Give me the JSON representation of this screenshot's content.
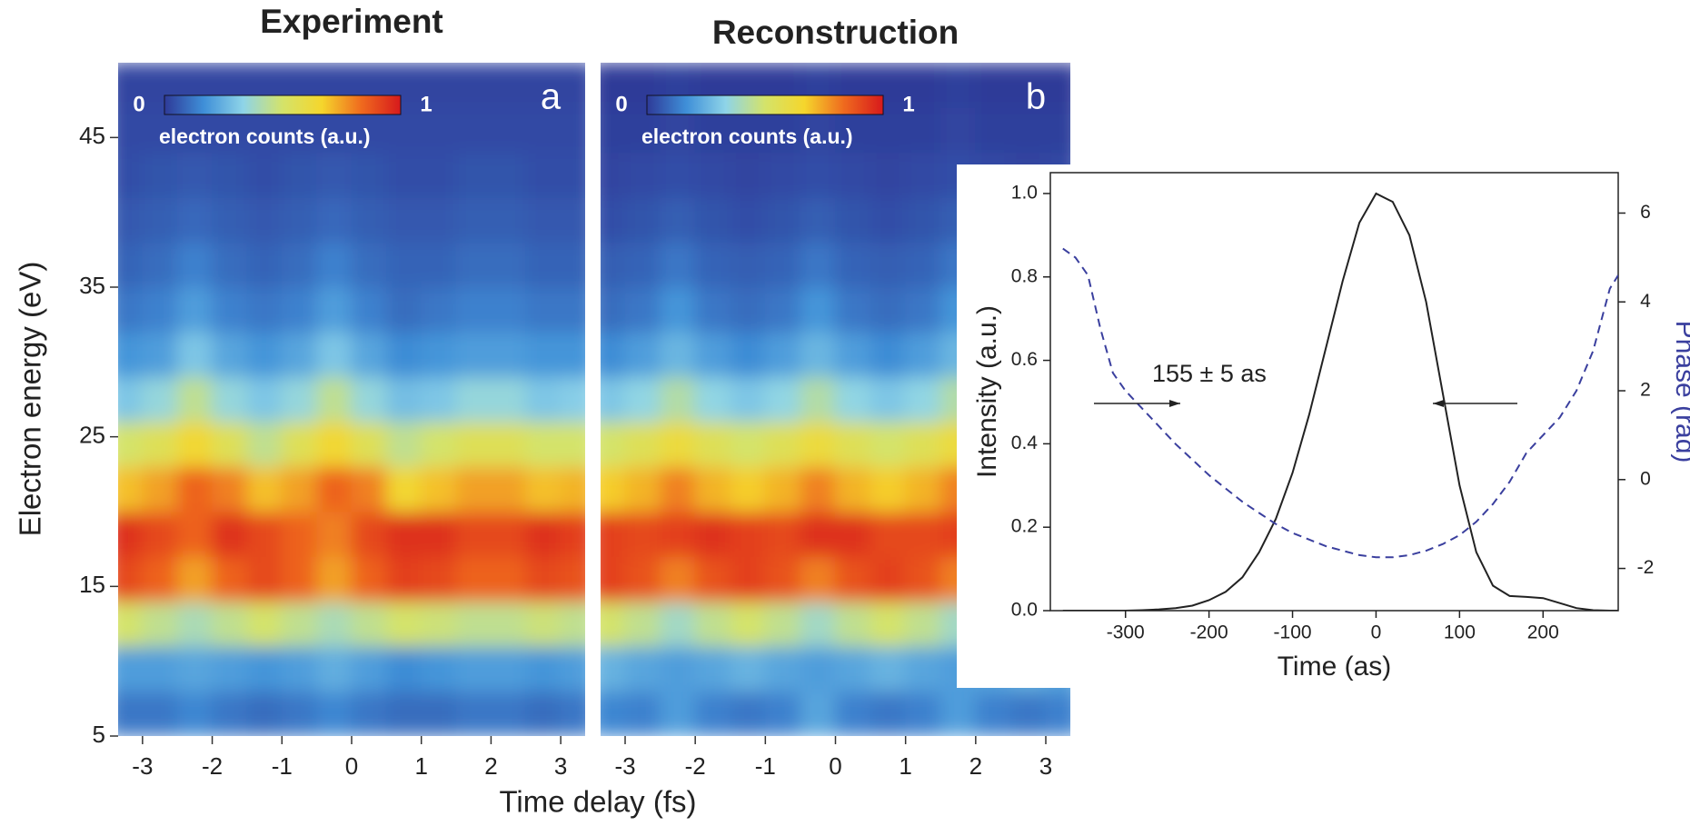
{
  "chart_data": [
    {
      "type": "heatmap",
      "title": "Experiment",
      "panel_label": "a",
      "y_label": "Electron energy (eV)",
      "x_label": "Time delay (fs)",
      "colorbar_ticks": [
        0,
        1
      ],
      "colorbar_label": "electron counts (a.u.)",
      "colormap": [
        "#2e3a98",
        "#3f8fd8",
        "#8ed4e8",
        "#d4e36a",
        "#f5d62c",
        "#ef6a1e",
        "#d7191c"
      ],
      "xlim": [
        -3.35,
        3.35
      ],
      "ylim": [
        5,
        50
      ],
      "xticks": [
        -3,
        -2,
        -1,
        0,
        1,
        2,
        3
      ],
      "yticks": [
        5,
        15,
        25,
        35,
        45
      ],
      "x": [
        -3.25,
        -2.75,
        -2.25,
        -1.75,
        -1.25,
        -0.75,
        -0.25,
        0.25,
        0.75,
        1.25,
        1.75,
        2.25,
        2.75,
        3.25
      ],
      "y": [
        6.5,
        9.5,
        12.5,
        15.5,
        18.5,
        21.5,
        24.5,
        27.5,
        30.5,
        33.5,
        36.5,
        39.5,
        42.5,
        45.5,
        48.5
      ],
      "z": [
        [
          0.12,
          0.12,
          0.15,
          0.12,
          0.1,
          0.12,
          0.15,
          0.12,
          0.1,
          0.1,
          0.12,
          0.12,
          0.1,
          0.12
        ],
        [
          0.2,
          0.2,
          0.22,
          0.2,
          0.18,
          0.2,
          0.24,
          0.2,
          0.16,
          0.18,
          0.2,
          0.2,
          0.18,
          0.2
        ],
        [
          0.5,
          0.45,
          0.4,
          0.45,
          0.5,
          0.45,
          0.4,
          0.45,
          0.5,
          0.48,
          0.45,
          0.45,
          0.48,
          0.45
        ],
        [
          0.9,
          0.85,
          0.75,
          0.85,
          0.9,
          0.85,
          0.75,
          0.85,
          0.92,
          0.9,
          0.85,
          0.85,
          0.9,
          0.88
        ],
        [
          0.95,
          0.9,
          0.85,
          0.95,
          0.9,
          0.85,
          0.8,
          0.9,
          0.95,
          0.95,
          0.9,
          0.9,
          0.95,
          0.92
        ],
        [
          0.7,
          0.75,
          0.85,
          0.8,
          0.7,
          0.75,
          0.85,
          0.8,
          0.65,
          0.7,
          0.75,
          0.75,
          0.7,
          0.72
        ],
        [
          0.5,
          0.55,
          0.65,
          0.55,
          0.45,
          0.55,
          0.65,
          0.55,
          0.45,
          0.5,
          0.55,
          0.55,
          0.5,
          0.5
        ],
        [
          0.3,
          0.35,
          0.45,
          0.35,
          0.3,
          0.35,
          0.45,
          0.35,
          0.28,
          0.3,
          0.35,
          0.35,
          0.3,
          0.32
        ],
        [
          0.18,
          0.2,
          0.3,
          0.22,
          0.18,
          0.22,
          0.3,
          0.22,
          0.16,
          0.18,
          0.2,
          0.2,
          0.18,
          0.18
        ],
        [
          0.12,
          0.14,
          0.2,
          0.14,
          0.12,
          0.14,
          0.2,
          0.14,
          0.1,
          0.12,
          0.14,
          0.14,
          0.12,
          0.12
        ],
        [
          0.08,
          0.1,
          0.14,
          0.1,
          0.08,
          0.1,
          0.14,
          0.1,
          0.08,
          0.08,
          0.1,
          0.1,
          0.08,
          0.08
        ],
        [
          0.06,
          0.07,
          0.09,
          0.07,
          0.06,
          0.07,
          0.09,
          0.07,
          0.06,
          0.06,
          0.07,
          0.07,
          0.06,
          0.06
        ],
        [
          0.04,
          0.05,
          0.06,
          0.05,
          0.04,
          0.05,
          0.06,
          0.05,
          0.04,
          0.04,
          0.05,
          0.05,
          0.04,
          0.04
        ],
        [
          0.03,
          0.03,
          0.03,
          0.03,
          0.03,
          0.03,
          0.03,
          0.03,
          0.03,
          0.03,
          0.03,
          0.03,
          0.03,
          0.03
        ],
        [
          0.02,
          0.02,
          0.02,
          0.02,
          0.02,
          0.02,
          0.02,
          0.02,
          0.02,
          0.02,
          0.02,
          0.02,
          0.02,
          0.02
        ]
      ]
    },
    {
      "type": "heatmap",
      "title": "Reconstruction",
      "panel_label": "b",
      "colorbar_ticks": [
        0,
        1
      ],
      "colorbar_label": "electron counts (a.u.)",
      "colormap": [
        "#2e3a98",
        "#3f8fd8",
        "#8ed4e8",
        "#d4e36a",
        "#f5d62c",
        "#ef6a1e",
        "#d7191c"
      ],
      "xlim": [
        -3.35,
        3.35
      ],
      "ylim": [
        5,
        50
      ],
      "xticks": [
        -3,
        -2,
        -1,
        0,
        1,
        2,
        3
      ],
      "x": [
        -3.25,
        -2.75,
        -2.25,
        -1.75,
        -1.25,
        -0.75,
        -0.25,
        0.25,
        0.75,
        1.25,
        1.75,
        2.25,
        2.75,
        3.25
      ],
      "y": [
        6.5,
        9.5,
        12.5,
        15.5,
        18.5,
        21.5,
        24.5,
        27.5,
        30.5,
        33.5,
        36.5,
        39.5,
        42.5,
        45.5,
        48.5
      ],
      "z": [
        [
          0.15,
          0.14,
          0.2,
          0.14,
          0.12,
          0.14,
          0.22,
          0.14,
          0.12,
          0.14,
          0.2,
          0.14,
          0.12,
          0.14
        ],
        [
          0.25,
          0.22,
          0.2,
          0.22,
          0.25,
          0.22,
          0.2,
          0.22,
          0.25,
          0.22,
          0.2,
          0.22,
          0.25,
          0.22
        ],
        [
          0.5,
          0.45,
          0.38,
          0.45,
          0.5,
          0.45,
          0.38,
          0.45,
          0.5,
          0.45,
          0.38,
          0.45,
          0.5,
          0.45
        ],
        [
          0.92,
          0.88,
          0.8,
          0.88,
          0.92,
          0.88,
          0.8,
          0.88,
          0.92,
          0.88,
          0.8,
          0.88,
          0.92,
          0.88
        ],
        [
          0.92,
          0.9,
          0.92,
          0.95,
          0.92,
          0.9,
          0.95,
          0.95,
          0.9,
          0.9,
          0.92,
          0.95,
          0.92,
          0.9
        ],
        [
          0.68,
          0.72,
          0.8,
          0.72,
          0.68,
          0.72,
          0.8,
          0.72,
          0.68,
          0.72,
          0.8,
          0.72,
          0.68,
          0.72
        ],
        [
          0.5,
          0.55,
          0.62,
          0.55,
          0.5,
          0.55,
          0.62,
          0.55,
          0.5,
          0.55,
          0.62,
          0.55,
          0.5,
          0.55
        ],
        [
          0.3,
          0.34,
          0.42,
          0.34,
          0.3,
          0.34,
          0.42,
          0.34,
          0.3,
          0.34,
          0.42,
          0.34,
          0.3,
          0.34
        ],
        [
          0.16,
          0.2,
          0.26,
          0.2,
          0.16,
          0.2,
          0.26,
          0.2,
          0.16,
          0.2,
          0.26,
          0.2,
          0.16,
          0.2
        ],
        [
          0.1,
          0.12,
          0.18,
          0.12,
          0.1,
          0.12,
          0.18,
          0.12,
          0.1,
          0.12,
          0.18,
          0.12,
          0.1,
          0.12
        ],
        [
          0.07,
          0.08,
          0.12,
          0.08,
          0.07,
          0.08,
          0.12,
          0.08,
          0.07,
          0.08,
          0.12,
          0.08,
          0.07,
          0.08
        ],
        [
          0.04,
          0.05,
          0.07,
          0.05,
          0.04,
          0.05,
          0.07,
          0.05,
          0.04,
          0.05,
          0.07,
          0.05,
          0.04,
          0.05
        ],
        [
          0.02,
          0.03,
          0.04,
          0.03,
          0.02,
          0.03,
          0.04,
          0.03,
          0.02,
          0.03,
          0.04,
          0.03,
          0.02,
          0.03
        ],
        [
          0.01,
          0.01,
          0.02,
          0.01,
          0.01,
          0.01,
          0.02,
          0.01,
          0.01,
          0.01,
          0.02,
          0.01,
          0.01,
          0.01
        ],
        [
          0,
          0,
          0.01,
          0,
          0,
          0,
          0.01,
          0,
          0,
          0,
          0.01,
          0,
          0,
          0
        ]
      ]
    },
    {
      "type": "line",
      "x_label": "Time (as)",
      "y_label": "Intensity (a.u.)",
      "y2_label": "Phase (rad)",
      "annotation": "155 ± 5  as",
      "xlim": [
        -390,
        290
      ],
      "ylim": [
        0,
        1.05
      ],
      "y2lim": [
        -2.95,
        6.91
      ],
      "xticks": [
        -300,
        -200,
        -100,
        0,
        100,
        200
      ],
      "yticks": [
        {
          "value": 0,
          "label": "0.0"
        },
        {
          "value": 0.2,
          "label": "0.2"
        },
        {
          "value": 0.4,
          "label": "0.4"
        },
        {
          "value": 0.6,
          "label": "0.6"
        },
        {
          "value": 0.8,
          "label": "0.8"
        },
        {
          "value": 1,
          "label": "1.0"
        }
      ],
      "y2ticks": [
        -2,
        0,
        2,
        4,
        6
      ],
      "x": [
        -375,
        -360,
        -345,
        -330,
        -315,
        -300,
        -280,
        -260,
        -240,
        -220,
        -200,
        -180,
        -160,
        -140,
        -120,
        -100,
        -80,
        -60,
        -40,
        -20,
        0,
        20,
        40,
        60,
        80,
        100,
        120,
        140,
        160,
        180,
        200,
        220,
        240,
        260,
        280,
        290
      ],
      "series": [
        {
          "color": "#222222",
          "dash": false,
          "values": [
            0,
            0,
            0,
            0,
            0,
            0,
            0.001,
            0.003,
            0.006,
            0.012,
            0.025,
            0.045,
            0.08,
            0.14,
            0.22,
            0.33,
            0.47,
            0.63,
            0.79,
            0.93,
            1.0,
            0.98,
            0.9,
            0.74,
            0.52,
            0.3,
            0.14,
            0.06,
            0.035,
            0.033,
            0.03,
            0.018,
            0.006,
            0.001,
            0,
            0
          ]
        },
        {
          "color": "#3a3f9e",
          "dash": true,
          "axis": "y2",
          "values": [
            5.2,
            5.0,
            4.6,
            3.4,
            2.4,
            2.0,
            1.6,
            1.2,
            0.8,
            0.45,
            0.1,
            -0.2,
            -0.5,
            -0.75,
            -1.0,
            -1.2,
            -1.35,
            -1.5,
            -1.6,
            -1.7,
            -1.75,
            -1.75,
            -1.7,
            -1.6,
            -1.45,
            -1.25,
            -0.95,
            -0.55,
            -0.05,
            0.6,
            1.0,
            1.4,
            2.0,
            2.9,
            4.3,
            4.6
          ]
        }
      ]
    }
  ]
}
